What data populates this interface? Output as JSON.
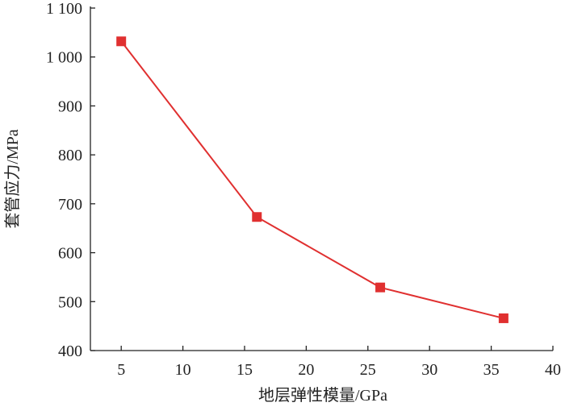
{
  "chart_data": {
    "type": "line",
    "x_label": "地层弹性模量/GPa",
    "y_label": "套管应力/MPa",
    "x": [
      5,
      16,
      26,
      36
    ],
    "series": [
      {
        "color": "#e03030",
        "values": [
          1032,
          673,
          529,
          466
        ]
      }
    ],
    "xlim": [
      2.5,
      40
    ],
    "xticks": [
      5,
      10,
      15,
      20,
      25,
      30,
      35,
      40
    ],
    "ylim": [
      400,
      1100
    ],
    "yticks": [
      400,
      500,
      600,
      700,
      800,
      900,
      {
        "value": 1000,
        "label": "1 000"
      },
      {
        "value": 1100,
        "label": "1 100"
      }
    ],
    "grid": false
  }
}
